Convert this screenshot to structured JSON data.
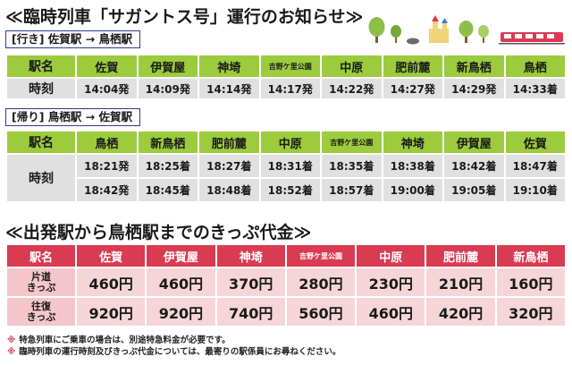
{
  "title": "≪臨時列車「サガントス号」運行のお知らせ≫",
  "outbound": {
    "label": "[行き] 佐賀駅 → 鳥栖駅",
    "headers": [
      "駅名",
      "佐賀",
      "伊賀屋",
      "神埼",
      "吉野ケ里公園",
      "中原",
      "肥前麓",
      "新鳥栖",
      "鳥栖"
    ],
    "row_label": "時刻",
    "times": [
      "14:04発",
      "14:09発",
      "14:14発",
      "14:17発",
      "14:22発",
      "14:27発",
      "14:29発",
      "14:33着"
    ]
  },
  "return": {
    "label": "[帰り] 鳥栖駅 → 佐賀駅",
    "headers": [
      "駅名",
      "鳥栖",
      "新鳥栖",
      "肥前麓",
      "中原",
      "吉野ケ里公園",
      "神埼",
      "伊賀屋",
      "佐賀"
    ],
    "row_label": "時刻",
    "times": [
      [
        "18:21発",
        "18:25着",
        "18:27着",
        "18:31着",
        "18:35着",
        "18:38着",
        "18:42着",
        "18:47着"
      ],
      [
        "18:42発",
        "18:45着",
        "18:48着",
        "18:52着",
        "18:57着",
        "19:00着",
        "19:05着",
        "19:10着"
      ]
    ]
  },
  "fare_title": "≪出発駅から鳥栖駅までのきっぷ代金≫",
  "fare": {
    "headers": [
      "駅名",
      "佐賀",
      "伊賀屋",
      "神埼",
      "吉野ケ里公園",
      "中原",
      "肥前麓",
      "新鳥栖"
    ],
    "rows": [
      {
        "label_1": "片道",
        "label_2": "きっぷ",
        "values": [
          "460円",
          "460円",
          "370円",
          "280円",
          "230円",
          "210円",
          "160円"
        ]
      },
      {
        "label_1": "往復",
        "label_2": "きっぷ",
        "values": [
          "920円",
          "920円",
          "740円",
          "560円",
          "460円",
          "420円",
          "320円"
        ]
      }
    ]
  },
  "notes": {
    "mark": "※",
    "items": [
      "特急列車にご乗車の場合は、別途特急料金が必要です。",
      "臨時列車の運行時刻及びきっぷ代金については、最寄りの駅係員にお尋ねください。"
    ]
  },
  "colors": {
    "green_header": "#9ccb3d",
    "red_header": "#d93b52",
    "gray_cell": "#e0e0e0",
    "pink_cell": "#f6d5d9"
  },
  "illustration": [
    "tree-icon",
    "bird-icon",
    "hedgehog-icon",
    "castle-icon",
    "tree-icon",
    "train-icon"
  ]
}
